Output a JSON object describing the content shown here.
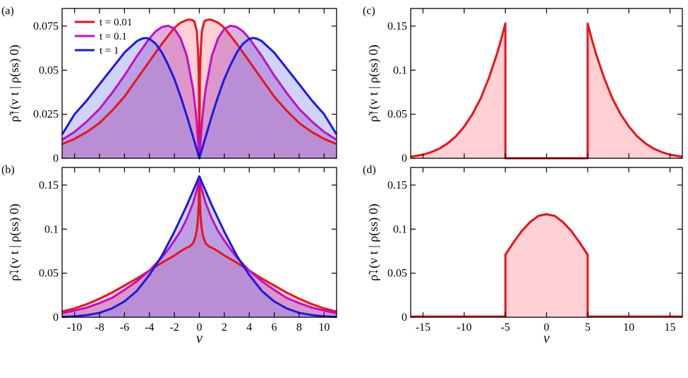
{
  "chart_data": [
    {
      "panel": "(a)",
      "type": "area",
      "ylabel": "ρ̃↑(v t | ρ(ss) 0)",
      "xlim": [
        -11,
        11
      ],
      "ylim": [
        0,
        0.085
      ],
      "yticks": [
        0,
        0.025,
        0.05,
        0.075
      ],
      "ytick_labels": [
        "0",
        "0.025",
        "0.05",
        "0.075"
      ],
      "xticks": [
        -10,
        -8,
        -6,
        -4,
        -2,
        0,
        2,
        4,
        6,
        8,
        10
      ],
      "xtick_labels": [],
      "legend": {
        "position": "top-left",
        "entries": [
          "t = 0.01",
          "t = 0.1",
          "t = 1"
        ]
      },
      "series": [
        {
          "name": "t = 0.01",
          "color": "#e8141c",
          "x": [
            0,
            0.05,
            0.1,
            0.2,
            0.4,
            0.6,
            0.8,
            1,
            1.5,
            2,
            3,
            4,
            5,
            6,
            7,
            8,
            9,
            10,
            11
          ],
          "y": [
            0,
            0.049,
            0.06,
            0.072,
            0.0777,
            0.0785,
            0.0787,
            0.0785,
            0.077,
            0.074,
            0.065,
            0.055,
            0.045,
            0.035,
            0.027,
            0.02,
            0.015,
            0.011,
            0.008
          ]
        },
        {
          "name": "t = 0.1",
          "color": "#bf10c4",
          "x": [
            0,
            0.25,
            0.5,
            1,
            1.5,
            2,
            2.5,
            3,
            3.5,
            4,
            5,
            6,
            7,
            8,
            9,
            10,
            11
          ],
          "y": [
            0,
            0.024,
            0.039,
            0.058,
            0.068,
            0.0735,
            0.0752,
            0.0745,
            0.072,
            0.068,
            0.058,
            0.047,
            0.037,
            0.028,
            0.021,
            0.015,
            0.0105
          ]
        },
        {
          "name": "t = 1",
          "color": "#1a1adf",
          "x": [
            0,
            0.5,
            1,
            1.5,
            2,
            2.5,
            3,
            3.5,
            4,
            4.3,
            4.6,
            5,
            6,
            7,
            8,
            9,
            10,
            11
          ],
          "y": [
            0,
            0.012,
            0.024,
            0.035,
            0.045,
            0.053,
            0.06,
            0.065,
            0.0678,
            0.0683,
            0.0679,
            0.0665,
            0.06,
            0.051,
            0.042,
            0.033,
            0.025,
            0.0135
          ]
        }
      ]
    },
    {
      "panel": "(b)",
      "type": "area",
      "ylabel": "ρ̃↓(v t | ρ(ss) 0)",
      "xlabel": "v",
      "xlim": [
        -11,
        11
      ],
      "ylim": [
        0,
        0.17
      ],
      "yticks": [
        0,
        0.05,
        0.1,
        0.15
      ],
      "ytick_labels": [
        "0",
        "0.05",
        "0.1",
        "0.15"
      ],
      "xticks": [
        -10,
        -8,
        -6,
        -4,
        -2,
        0,
        2,
        4,
        6,
        8,
        10
      ],
      "xtick_labels": [
        "-10",
        "-8",
        "-6",
        "-4",
        "-2",
        "0",
        "2",
        "4",
        "6",
        "8",
        "10"
      ],
      "series": [
        {
          "name": "t = 0.01",
          "color": "#e8141c",
          "x": [
            0,
            0.05,
            0.1,
            0.2,
            0.3,
            0.5,
            0.8,
            1,
            1.5,
            2,
            3,
            4,
            5,
            6,
            7,
            8,
            9,
            10,
            11
          ],
          "y": [
            0.157,
            0.13,
            0.114,
            0.1,
            0.092,
            0.084,
            0.08,
            0.079,
            0.075,
            0.07,
            0.062,
            0.053,
            0.044,
            0.036,
            0.028,
            0.021,
            0.015,
            0.01,
            0.0065
          ]
        },
        {
          "name": "t = 0.1",
          "color": "#bf10c4",
          "x": [
            0,
            0.2,
            0.5,
            1,
            1.5,
            2,
            2.5,
            3,
            4,
            5,
            6,
            7,
            8,
            9,
            10,
            11
          ],
          "y": [
            0.157,
            0.145,
            0.13,
            0.112,
            0.098,
            0.087,
            0.077,
            0.068,
            0.053,
            0.041,
            0.031,
            0.022,
            0.016,
            0.011,
            0.0075,
            0.0045
          ]
        },
        {
          "name": "t = 1",
          "color": "#1a1adf",
          "x": [
            0,
            1,
            2,
            3,
            4,
            5,
            6,
            7,
            8,
            9,
            10,
            11
          ],
          "y": [
            0.16,
            0.127,
            0.097,
            0.07,
            0.048,
            0.03,
            0.018,
            0.01,
            0.005,
            0.0025,
            0.001,
            0.0004
          ]
        }
      ]
    },
    {
      "panel": "(c)",
      "type": "area",
      "ylabel": "ρ̃↑(v t | ρ(ss) 0)",
      "xlim": [
        -16.5,
        16.5
      ],
      "ylim": [
        0,
        0.17
      ],
      "yticks": [
        0,
        0.05,
        0.1,
        0.15
      ],
      "ytick_labels": [
        "0",
        "0.05",
        "0.1",
        "0.15"
      ],
      "xticks": [
        -15,
        -10,
        -5,
        0,
        5,
        10,
        15
      ],
      "xtick_labels": [],
      "series": [
        {
          "name": "",
          "color": "#e8141c",
          "x": [
            5,
            5.5,
            6,
            7,
            8,
            9,
            10,
            11,
            12,
            13,
            14,
            15,
            16,
            16.5
          ],
          "y": [
            0.153,
            0.135,
            0.119,
            0.091,
            0.068,
            0.05,
            0.036,
            0.025,
            0.017,
            0.011,
            0.007,
            0.004,
            0.0025,
            0.002
          ],
          "jump_at": 5
        }
      ]
    },
    {
      "panel": "(d)",
      "type": "area",
      "ylabel": "ρ̃↓(v t | ρ(ss) 0)",
      "xlabel": "v",
      "xlim": [
        -16.5,
        16.5
      ],
      "ylim": [
        0,
        0.17
      ],
      "yticks": [
        0,
        0.05,
        0.1,
        0.15
      ],
      "ytick_labels": [
        "0",
        "0.05",
        "0.1",
        "0.15"
      ],
      "xticks": [
        -15,
        -10,
        -5,
        0,
        5,
        10,
        15
      ],
      "xtick_labels": [
        "-15",
        "-10",
        "-5",
        "0",
        "5",
        "10",
        "15"
      ],
      "series": [
        {
          "name": "",
          "color": "#e8141c",
          "x": [
            0,
            1,
            2,
            3,
            4,
            5
          ],
          "y": [
            0.117,
            0.115,
            0.108,
            0.098,
            0.085,
            0.071
          ],
          "jump_at": 5
        }
      ]
    }
  ]
}
